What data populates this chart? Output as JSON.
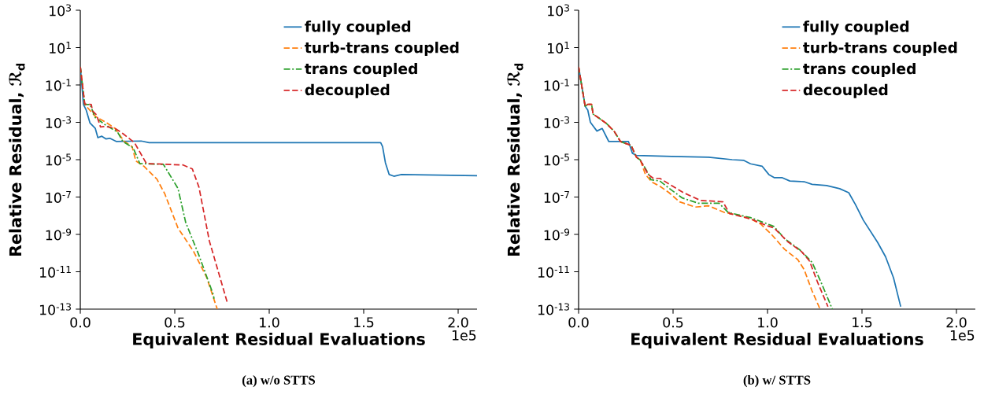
{
  "chart_data": [
    {
      "type": "line",
      "title": "(a) w/o STTS",
      "xlabel": "Equivalent Residual Evaluations",
      "ylabel": "Relative Residual, ℛ$_{d}$",
      "annotations": [
        "1e5"
      ],
      "log": "y",
      "legend": "top right",
      "xlim": [
        0,
        2.1
      ],
      "ylim": [
        1e-13,
        1000
      ],
      "xticks": [
        {
          "value": 0,
          "label": "0.0"
        },
        {
          "value": 0.5,
          "label": "0.5"
        },
        {
          "value": 1,
          "label": "1.0"
        },
        {
          "value": 1.5,
          "label": "1.5"
        },
        {
          "value": 2,
          "label": "2.0"
        }
      ],
      "yticks": [
        {
          "value": 1000,
          "label": "10$^{3}$"
        },
        {
          "value": 10,
          "label": "10$^{1}$"
        },
        {
          "value": 0.1,
          "label": "10$^{-1}$"
        },
        {
          "value": 0.001,
          "label": "10$^{-3}$"
        },
        {
          "value": 1e-05,
          "label": "10$^{-5}$"
        },
        {
          "value": 1e-07,
          "label": "10$^{-7}$"
        },
        {
          "value": 1e-09,
          "label": "10$^{-9}$"
        },
        {
          "value": 1e-11,
          "label": "10$^{-11}$"
        },
        {
          "value": 1e-13,
          "label": "10$^{-13}$"
        }
      ],
      "series": [
        {
          "name": "fully coupled",
          "color": "#1f77b4",
          "line_style": "solid",
          "x": [
            0,
            0.0167,
            0.0306,
            0.0514,
            0.079,
            0.093,
            0.114,
            0.135,
            0.156,
            0.19,
            0.322,
            0.364,
            1.59,
            1.6,
            1.615,
            1.635,
            1.66,
            1.7,
            2.1
          ],
          "values": [
            1,
            0.0089,
            0.0047,
            0.00091,
            0.00048,
            0.00015,
            0.00018,
            0.00013,
            0.00014,
            9.5e-05,
            0.0001,
            8.1e-05,
            8.1e-05,
            5e-05,
            6.8e-06,
            1.6e-06,
            1.3e-06,
            1.6e-06,
            1.4e-06
          ]
        },
        {
          "name": "turb-trans coupled",
          "color": "#ff7f0e",
          "line_style": "dashed",
          "x": [
            0,
            0.0236,
            0.079,
            0.142,
            0.183,
            0.232,
            0.274,
            0.294,
            0.336,
            0.406,
            0.447,
            0.517,
            0.6,
            0.669,
            0.718,
            0.725
          ],
          "values": [
            0.95,
            0.0089,
            0.0021,
            0.00091,
            0.00048,
            9.5e-05,
            5e-05,
            8.5e-06,
            4.5e-06,
            8.9e-07,
            1.5e-07,
            2.2e-09,
            1.2e-10,
            5e-12,
            1.6e-13,
            1e-13
          ]
        },
        {
          "name": "trans coupled",
          "color": "#2ca02c",
          "line_style": "dashdot",
          "x": [
            0,
            0.0236,
            0.0514,
            0.079,
            0.128,
            0.197,
            0.225,
            0.28,
            0.315,
            0.44,
            0.517,
            0.558,
            0.628,
            0.704,
            0.708
          ],
          "values": [
            0.95,
            0.0089,
            0.0089,
            0.0018,
            0.00079,
            0.0003,
            9.5e-05,
            4.3e-05,
            6.2e-06,
            5.6e-06,
            2.9e-07,
            4.3e-09,
            7.6e-11,
            5.9e-13,
            3.6e-13
          ]
        },
        {
          "name": "decoupled",
          "color": "#d62728",
          "line_style": "dashed",
          "x": [
            0,
            0.0236,
            0.0583,
            0.065,
            0.086,
            0.107,
            0.135,
            0.183,
            0.225,
            0.287,
            0.35,
            0.544,
            0.593,
            0.628,
            0.683,
            0.78
          ],
          "values": [
            0.95,
            0.0095,
            0.0089,
            0.004,
            0.0025,
            0.00056,
            0.0006,
            0.00048,
            0.00025,
            8.1e-05,
            6.2e-06,
            5.2e-06,
            3.2e-06,
            3.4e-07,
            4.5e-10,
            1.9e-13
          ]
        }
      ]
    },
    {
      "type": "line",
      "title": "(b) w/ STTS",
      "xlabel": "Equivalent Residual Evaluations",
      "ylabel": "Relative Residual, ℛ$_{d}$",
      "annotations": [
        "1e5"
      ],
      "log": "y",
      "legend": "top right",
      "xlim": [
        0,
        2.1
      ],
      "ylim": [
        1e-13,
        1000
      ],
      "xticks": [
        {
          "value": 0,
          "label": "0.0"
        },
        {
          "value": 0.5,
          "label": "0.5"
        },
        {
          "value": 1,
          "label": "1.0"
        },
        {
          "value": 1.5,
          "label": "1.5"
        },
        {
          "value": 2,
          "label": "2.0"
        }
      ],
      "yticks": [
        {
          "value": 1000,
          "label": "10$^{3}$"
        },
        {
          "value": 10,
          "label": "10$^{1}$"
        },
        {
          "value": 0.1,
          "label": "10$^{-1}$"
        },
        {
          "value": 0.001,
          "label": "10$^{-3}$"
        },
        {
          "value": 1e-05,
          "label": "10$^{-5}$"
        },
        {
          "value": 1e-07,
          "label": "10$^{-7}$"
        },
        {
          "value": 1e-09,
          "label": "10$^{-9}$"
        },
        {
          "value": 1e-11,
          "label": "10$^{-11}$"
        },
        {
          "value": 1e-13,
          "label": "10$^{-13}$"
        }
      ],
      "series": [
        {
          "name": "fully coupled",
          "color": "#1f77b4",
          "line_style": "solid",
          "x": [
            0,
            0.0347,
            0.0486,
            0.0625,
            0.097,
            0.125,
            0.16,
            0.264,
            0.285,
            0.306,
            0.493,
            0.688,
            0.813,
            0.875,
            0.91,
            0.972,
            1.007,
            1.035,
            1.076,
            1.118,
            1.194,
            1.236,
            1.3125,
            1.382,
            1.43,
            1.465,
            1.507,
            1.583,
            1.625,
            1.667,
            1.705
          ],
          "values": [
            0.93,
            0.0072,
            0.0045,
            0.001,
            0.00034,
            0.00047,
            9.3e-05,
            9.3e-05,
            2.2e-05,
            1.7e-05,
            1.5e-05,
            1.35e-05,
            1e-05,
            9.1e-06,
            6e-06,
            4.4e-06,
            1.6e-06,
            1.1e-06,
            1.1e-06,
            7.2e-07,
            6.6e-07,
            4.8e-07,
            4.1e-07,
            2.8e-07,
            1.7e-07,
            4e-08,
            5.8e-09,
            3.7e-10,
            6.3e-11,
            4.7e-12,
            1.35e-13
          ]
        },
        {
          "name": "turb-trans coupled",
          "color": "#ff7f0e",
          "line_style": "dashed",
          "x": [
            0,
            0.0347,
            0.0486,
            0.069,
            0.0764,
            0.146,
            0.1875,
            0.222,
            0.278,
            0.306,
            0.326,
            0.354,
            0.389,
            0.43,
            0.479,
            0.535,
            0.618,
            0.6875,
            0.771,
            0.84,
            0.91,
            0.965,
            1.021,
            1.09,
            1.16,
            1.194,
            1.236,
            1.278
          ],
          "values": [
            0.93,
            0.0072,
            0.0091,
            0.0091,
            0.0028,
            0.00089,
            0.00034,
            9.3e-05,
            5.8e-05,
            1.35e-05,
            9.8e-06,
            1.6e-06,
            6.2e-07,
            3.8e-07,
            1.7e-07,
            5.5e-08,
            2.9e-08,
            3.4e-08,
            1.5e-08,
            1.1e-08,
            6.8e-09,
            3.5e-09,
            1e-09,
            1.6e-10,
            4.5e-11,
            1.3e-11,
            9.3e-13,
            1e-13
          ]
        },
        {
          "name": "trans coupled",
          "color": "#2ca02c",
          "line_style": "dashdot",
          "x": [
            0,
            0.0347,
            0.0486,
            0.069,
            0.0764,
            0.146,
            0.1875,
            0.222,
            0.278,
            0.306,
            0.326,
            0.368,
            0.382,
            0.43,
            0.493,
            0.549,
            0.632,
            0.743,
            0.792,
            0.91,
            1.021,
            1.035,
            1.09,
            1.174,
            1.236,
            1.285,
            1.343
          ],
          "values": [
            0.93,
            0.0072,
            0.0091,
            0.0091,
            0.0028,
            0.00089,
            0.00034,
            9.3e-05,
            5.8e-05,
            1.35e-05,
            9.8e-06,
            1.9e-06,
            8.5e-07,
            7.2e-07,
            2.3e-07,
            8.9e-08,
            4.7e-08,
            4.7e-08,
            1.5e-08,
            7.9e-09,
            3e-09,
            2.6e-09,
            6e-10,
            1.4e-10,
            3.2e-11,
            2.5e-12,
            1e-13
          ]
        },
        {
          "name": "decoupled",
          "color": "#d62728",
          "line_style": "dashed",
          "x": [
            0,
            0.0347,
            0.0486,
            0.069,
            0.0764,
            0.146,
            0.1875,
            0.222,
            0.278,
            0.306,
            0.326,
            0.368,
            0.396,
            0.43,
            0.493,
            0.556,
            0.646,
            0.729,
            0.764,
            0.799,
            0.91,
            0.993,
            1.035,
            1.104,
            1.18,
            1.222,
            1.264,
            1.32
          ],
          "values": [
            0.93,
            0.0072,
            0.0091,
            0.0091,
            0.0028,
            0.00089,
            0.00034,
            9.3e-05,
            5.8e-05,
            1.35e-05,
            9.8e-06,
            1.6e-06,
            1e-06,
            1e-06,
            4.1e-07,
            1.7e-07,
            6.5e-08,
            5.9e-08,
            5.5e-08,
            1.3e-08,
            6.8e-09,
            3e-09,
            2.2e-09,
            4.3e-10,
            1.2e-10,
            3.8e-11,
            2.9e-12,
            1.35e-13
          ]
        }
      ]
    }
  ]
}
